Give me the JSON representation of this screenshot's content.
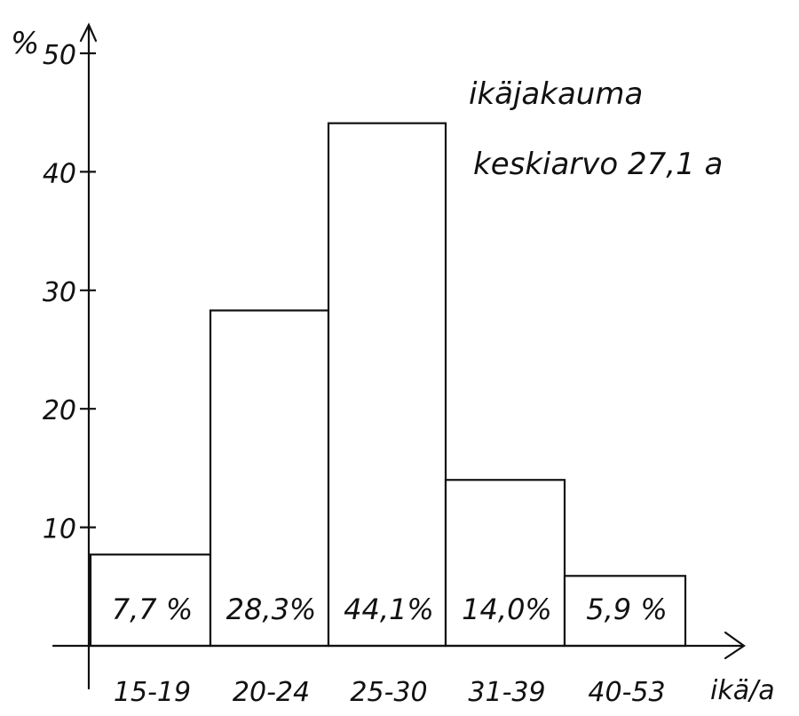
{
  "chart_data": {
    "type": "bar",
    "title": "ikäjakauma",
    "subtitle": "keskiarvo 27,1 a",
    "xlabel": "ikä/a",
    "ylabel": "%",
    "categories": [
      "15-19",
      "20-24",
      "25-30",
      "31-39",
      "40-53"
    ],
    "values": [
      7.7,
      28.3,
      44.1,
      14.0,
      5.9
    ],
    "data_labels": [
      "7,7 %",
      "28,3%",
      "44,1%",
      "14,0%",
      "5,9 %"
    ],
    "yticks": [
      10,
      20,
      30,
      40,
      50
    ],
    "ylim": [
      0,
      50
    ],
    "grid": false
  }
}
